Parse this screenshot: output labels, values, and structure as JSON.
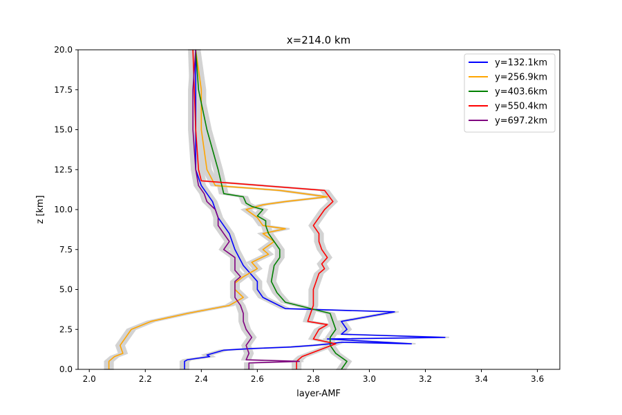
{
  "chart_data": {
    "type": "line",
    "title": "x=214.0 km",
    "xlabel": "layer-AMF",
    "ylabel": "z [km]",
    "xlim": [
      1.96,
      3.68
    ],
    "ylim": [
      0,
      20
    ],
    "xticks": [
      "2.0",
      "2.2",
      "2.4",
      "2.6",
      "2.8",
      "3.0",
      "3.2",
      "3.4",
      "3.6"
    ],
    "yticks": [
      "0.0",
      "2.5",
      "5.0",
      "7.5",
      "10.0",
      "12.5",
      "15.0",
      "17.5",
      "20.0"
    ],
    "grid": false,
    "legend": "top-right",
    "band_color": "#d3d3d3",
    "series": [
      {
        "name": "y=132.1km",
        "color": "#0000ff",
        "band_halfwidth": 0.015,
        "x": [
          2.34,
          2.34,
          2.35,
          2.43,
          2.42,
          2.48,
          2.58,
          2.72,
          2.8,
          2.86,
          2.9,
          3.15,
          2.85,
          3.27,
          2.9,
          2.92,
          2.9,
          3.09,
          2.7,
          2.62,
          2.6,
          2.6,
          2.55,
          2.52,
          2.5,
          2.46,
          2.44,
          2.4,
          2.38,
          2.38,
          2.38,
          2.38
        ],
        "y": [
          0.0,
          0.5,
          0.6,
          0.8,
          0.9,
          1.2,
          1.3,
          1.4,
          1.5,
          1.6,
          1.7,
          1.6,
          1.9,
          2.0,
          2.2,
          2.5,
          3.0,
          3.6,
          3.8,
          4.5,
          5.0,
          5.5,
          6.5,
          7.5,
          8.5,
          9.5,
          10.5,
          11.5,
          12.5,
          15.0,
          17.5,
          20.0
        ]
      },
      {
        "name": "y=256.9km",
        "color": "#ffa500",
        "band_halfwidth": 0.015,
        "x": [
          2.07,
          2.07,
          2.09,
          2.12,
          2.11,
          2.13,
          2.15,
          2.22,
          2.35,
          2.5,
          2.55,
          2.52,
          2.52,
          2.55,
          2.6,
          2.58,
          2.64,
          2.62,
          2.66,
          2.62,
          2.7,
          2.62,
          2.6,
          2.56,
          2.62,
          2.7,
          2.85,
          2.68,
          2.45,
          2.42,
          2.4,
          2.4,
          2.38
        ],
        "y": [
          0.0,
          0.5,
          0.8,
          1.0,
          1.5,
          2.0,
          2.5,
          3.0,
          3.5,
          4.0,
          4.5,
          5.0,
          5.4,
          5.8,
          6.3,
          6.7,
          7.2,
          7.5,
          8.0,
          8.5,
          8.8,
          9.0,
          9.5,
          10.0,
          10.3,
          10.5,
          10.8,
          11.2,
          11.5,
          12.5,
          15.0,
          17.5,
          20.0
        ]
      },
      {
        "name": "y=403.6km",
        "color": "#008000",
        "band_halfwidth": 0.015,
        "x": [
          2.9,
          2.92,
          2.88,
          2.86,
          2.86,
          2.88,
          2.87,
          2.86,
          2.7,
          2.67,
          2.65,
          2.66,
          2.68,
          2.68,
          2.66,
          2.64,
          2.63,
          2.63,
          2.6,
          2.62,
          2.58,
          2.56,
          2.55,
          2.48,
          2.46,
          2.42,
          2.39,
          2.38
        ],
        "y": [
          0.0,
          0.5,
          1.0,
          1.5,
          2.0,
          2.5,
          3.0,
          3.5,
          4.2,
          4.8,
          5.5,
          6.5,
          7.0,
          7.5,
          8.0,
          8.5,
          9.0,
          9.3,
          9.6,
          10.0,
          10.2,
          10.4,
          10.8,
          11.0,
          12.5,
          15.0,
          17.5,
          20.0
        ]
      },
      {
        "name": "y=550.4km",
        "color": "#ff0000",
        "band_halfwidth": 0.015,
        "x": [
          2.74,
          2.74,
          2.76,
          2.88,
          2.8,
          2.82,
          2.85,
          2.78,
          2.8,
          2.8,
          2.82,
          2.84,
          2.83,
          2.85,
          2.83,
          2.82,
          2.82,
          2.8,
          2.82,
          2.84,
          2.87,
          2.84,
          2.4,
          2.39,
          2.38,
          2.37
        ],
        "y": [
          0.0,
          0.5,
          0.8,
          1.6,
          1.9,
          2.5,
          2.8,
          3.0,
          4.0,
          5.0,
          6.0,
          6.3,
          6.6,
          7.0,
          7.5,
          8.0,
          8.5,
          9.0,
          9.5,
          10.0,
          10.5,
          11.2,
          11.8,
          12.5,
          15.0,
          20.0
        ]
      },
      {
        "name": "y=697.2km",
        "color": "#800080",
        "band_halfwidth": 0.015,
        "x": [
          2.57,
          2.57,
          2.75,
          2.56,
          2.57,
          2.56,
          2.58,
          2.56,
          2.55,
          2.55,
          2.54,
          2.52,
          2.52,
          2.52,
          2.54,
          2.52,
          2.52,
          2.52,
          2.48,
          2.5,
          2.48,
          2.46,
          2.46,
          2.45,
          2.42,
          2.41,
          2.39,
          2.38,
          2.37,
          2.37,
          2.38
        ],
        "y": [
          0.0,
          0.4,
          0.5,
          0.6,
          1.0,
          1.5,
          2.0,
          2.5,
          3.0,
          3.5,
          4.0,
          4.5,
          5.0,
          5.5,
          5.8,
          6.2,
          6.5,
          7.0,
          7.5,
          8.0,
          8.5,
          9.0,
          9.5,
          10.0,
          10.5,
          11.0,
          11.5,
          12.5,
          15.0,
          17.5,
          20.0
        ]
      }
    ]
  }
}
